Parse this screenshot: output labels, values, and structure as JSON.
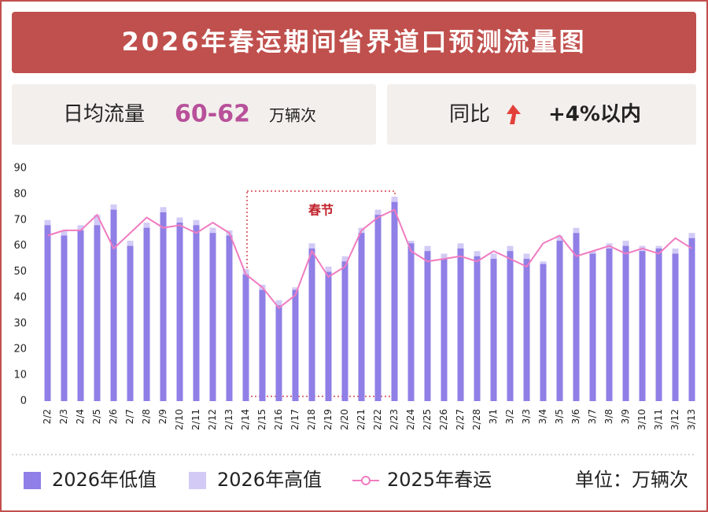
{
  "chart_data": {
    "type": "bar",
    "title": "2026年春运期间省界道口预测流量图",
    "categories": [
      "2/2",
      "2/3",
      "2/4",
      "2/5",
      "2/6",
      "2/7",
      "2/8",
      "2/9",
      "2/10",
      "2/11",
      "2/12",
      "2/13",
      "2/14",
      "2/15",
      "2/16",
      "2/17",
      "2/18",
      "2/19",
      "2/20",
      "2/21",
      "2/22",
      "2/23",
      "2/24",
      "2/25",
      "2/26",
      "2/27",
      "2/28",
      "3/1",
      "3/2",
      "3/3",
      "3/4",
      "3/5",
      "3/6",
      "3/7",
      "3/8",
      "3/9",
      "3/10",
      "3/11",
      "3/12",
      "3/13"
    ],
    "series": [
      {
        "name": "2026年低值",
        "color": "#8f7fe6",
        "values": [
          68,
          64,
          66,
          68,
          74,
          60,
          67,
          73,
          69,
          68,
          65,
          64,
          49,
          43,
          37,
          43,
          59,
          50,
          54,
          65,
          72,
          77,
          61,
          58,
          55,
          59,
          56,
          55,
          58,
          55,
          53,
          62,
          65,
          57,
          59,
          60,
          58,
          59,
          57,
          63
        ]
      },
      {
        "name": "2026年高值",
        "color": "#d3cbf6",
        "values": [
          70,
          66,
          68,
          72,
          76,
          62,
          69,
          75,
          71,
          70,
          67,
          66,
          51,
          45,
          39,
          44,
          61,
          52,
          56,
          67,
          74,
          79,
          62,
          60,
          57,
          61,
          58,
          57,
          60,
          57,
          54,
          64,
          67,
          58,
          61,
          62,
          60,
          60,
          59,
          65
        ]
      },
      {
        "name": "2025年春运",
        "color": "#f07cc0",
        "type": "line",
        "values": [
          64,
          66,
          66,
          72,
          59,
          65,
          71,
          67,
          68,
          65,
          69,
          65,
          49,
          44,
          36,
          41,
          58,
          48,
          52,
          66,
          71,
          74,
          58,
          54,
          55,
          56,
          54,
          58,
          55,
          52,
          61,
          64,
          56,
          58,
          60,
          57,
          59,
          57,
          63,
          59
        ]
      }
    ],
    "ylim": [
      0,
      90
    ],
    "yticks": [
      0,
      10,
      20,
      30,
      40,
      50,
      60,
      70,
      80,
      90
    ],
    "annotation": "春节",
    "unit": "单位：万辆次"
  },
  "summary": [
    {
      "label": "日均流量",
      "value": "60-62",
      "unit": "万辆次"
    },
    {
      "label": "同比",
      "value": "+4%以内"
    }
  ]
}
